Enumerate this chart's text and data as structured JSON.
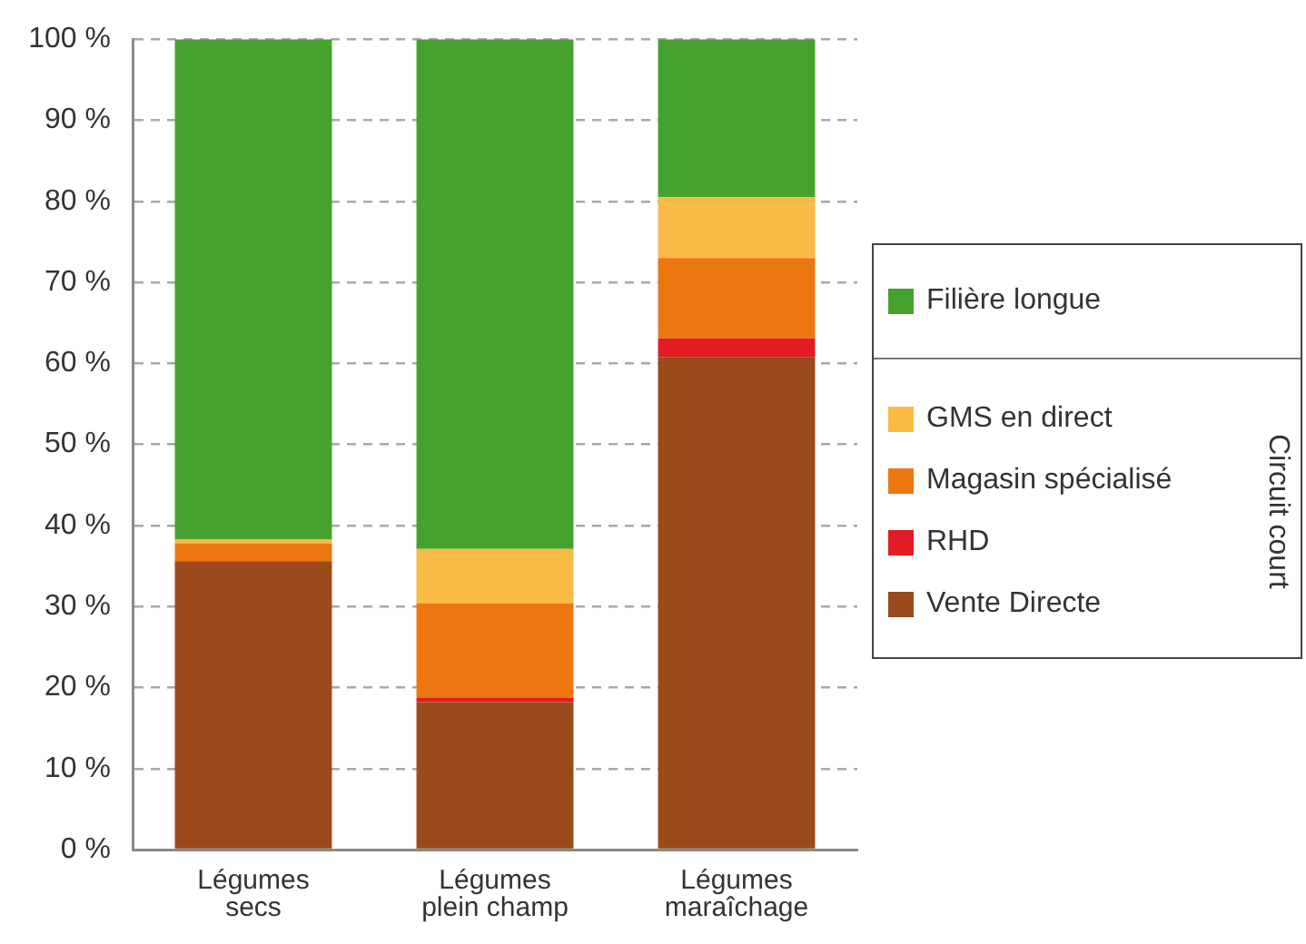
{
  "chart_data": {
    "type": "bar",
    "stacked": true,
    "categories": [
      "Légumes secs",
      "Légumes plein champ",
      "Légumes maraîchage"
    ],
    "series": [
      {
        "name": "Vente Directe",
        "color": "#9a4a1b",
        "values": [
          35.6,
          18.2,
          60.8
        ]
      },
      {
        "name": "RHD",
        "color": "#e31b23",
        "values": [
          0,
          0.5,
          2.3
        ]
      },
      {
        "name": "Magasin spécialisé",
        "color": "#ee7611",
        "values": [
          2.2,
          11.7,
          9.9
        ]
      },
      {
        "name": "GMS en direct",
        "color": "#f9bb45",
        "values": [
          0.5,
          6.7,
          7.5
        ]
      },
      {
        "name": "Filière longue",
        "color": "#46a22e",
        "values": [
          61.7,
          62.9,
          19.5
        ]
      }
    ],
    "ylim": [
      0,
      100
    ],
    "yticks": [
      {
        "value": 0,
        "label": "0 %"
      },
      {
        "value": 10,
        "label": "10 %"
      },
      {
        "value": 20,
        "label": "20 %"
      },
      {
        "value": 30,
        "label": "30 %"
      },
      {
        "value": 40,
        "label": "40 %"
      },
      {
        "value": 50,
        "label": "50 %"
      },
      {
        "value": 60,
        "label": "60 %"
      },
      {
        "value": 70,
        "label": "70 %"
      },
      {
        "value": 80,
        "label": "80 %"
      },
      {
        "value": 90,
        "label": "90 %"
      },
      {
        "value": 100,
        "label": "100 %"
      }
    ],
    "grid": "y",
    "legend": "right",
    "legend_title": "Circuit court"
  }
}
